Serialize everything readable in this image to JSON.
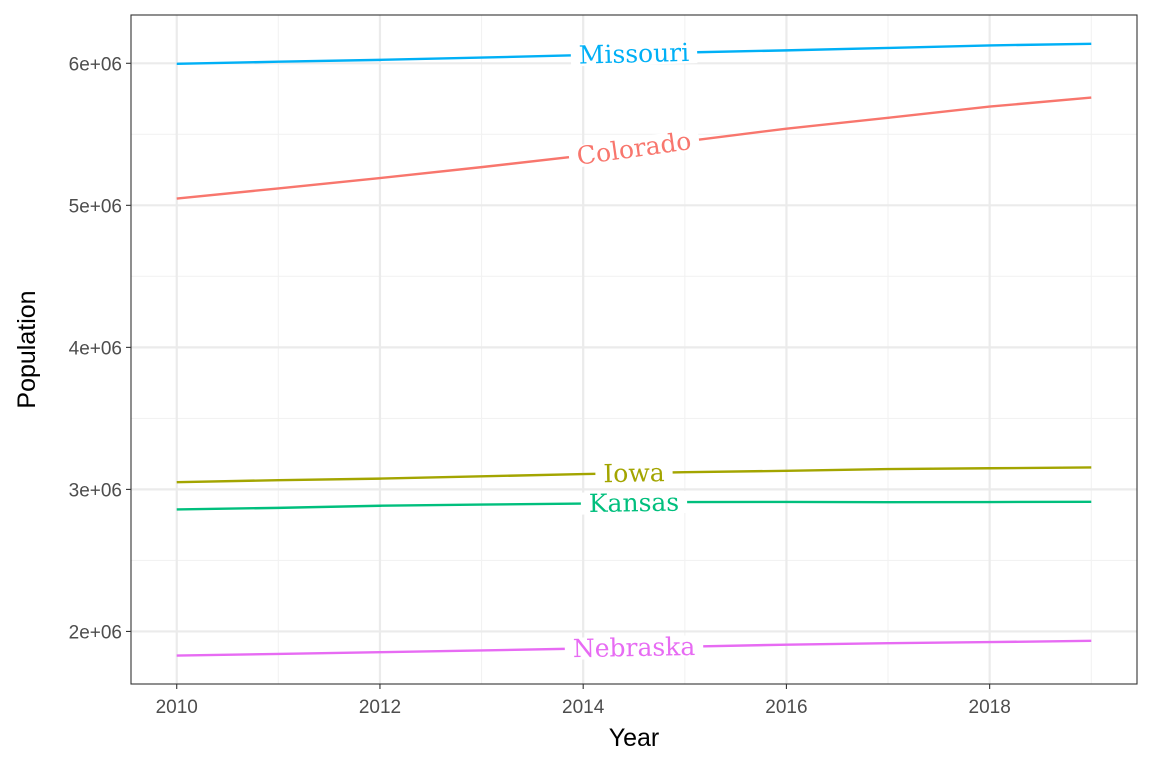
{
  "chart_data": {
    "type": "line",
    "title": "",
    "xlabel": "Year",
    "ylabel": "Population",
    "xlim": [
      2009.55,
      2019.45
    ],
    "ylim": [
      1630000,
      6340000
    ],
    "x_ticks": [
      2010,
      2012,
      2014,
      2016,
      2018
    ],
    "x_tick_labels": [
      "2010",
      "2012",
      "2014",
      "2016",
      "2018"
    ],
    "y_ticks": [
      2000000,
      3000000,
      4000000,
      5000000,
      6000000
    ],
    "y_tick_labels": [
      "2e+06",
      "3e+06",
      "4e+06",
      "5e+06",
      "6e+06"
    ],
    "grid": true,
    "legend": "none (direct labels on lines)",
    "x": [
      2010,
      2011,
      2012,
      2013,
      2014,
      2015,
      2016,
      2017,
      2018,
      2019
    ],
    "series": [
      {
        "name": "Missouri",
        "color": "#00B0F6",
        "label_x": 2014.5,
        "values": [
          5996000,
          6011000,
          6024000,
          6040000,
          6058000,
          6076000,
          6091000,
          6108000,
          6126000,
          6137000
        ]
      },
      {
        "name": "Colorado",
        "color": "#F8766D",
        "label_x": 2014.5,
        "values": [
          5048000,
          5119000,
          5192000,
          5269000,
          5350000,
          5450000,
          5540000,
          5616000,
          5695000,
          5759000
        ]
      },
      {
        "name": "Iowa",
        "color": "#A3A500",
        "label_x": 2014.5,
        "values": [
          3051000,
          3065000,
          3076000,
          3092000,
          3108000,
          3121000,
          3131000,
          3143000,
          3149000,
          3155000
        ]
      },
      {
        "name": "Kansas",
        "color": "#00BF7D",
        "label_x": 2014.5,
        "values": [
          2859000,
          2870000,
          2885000,
          2893000,
          2900000,
          2911000,
          2912000,
          2910000,
          2911000,
          2913000
        ]
      },
      {
        "name": "Nebraska",
        "color": "#E76BF3",
        "label_x": 2014.5,
        "values": [
          1830000,
          1842000,
          1854000,
          1866000,
          1880000,
          1893000,
          1907000,
          1917000,
          1925000,
          1934000
        ]
      }
    ]
  }
}
